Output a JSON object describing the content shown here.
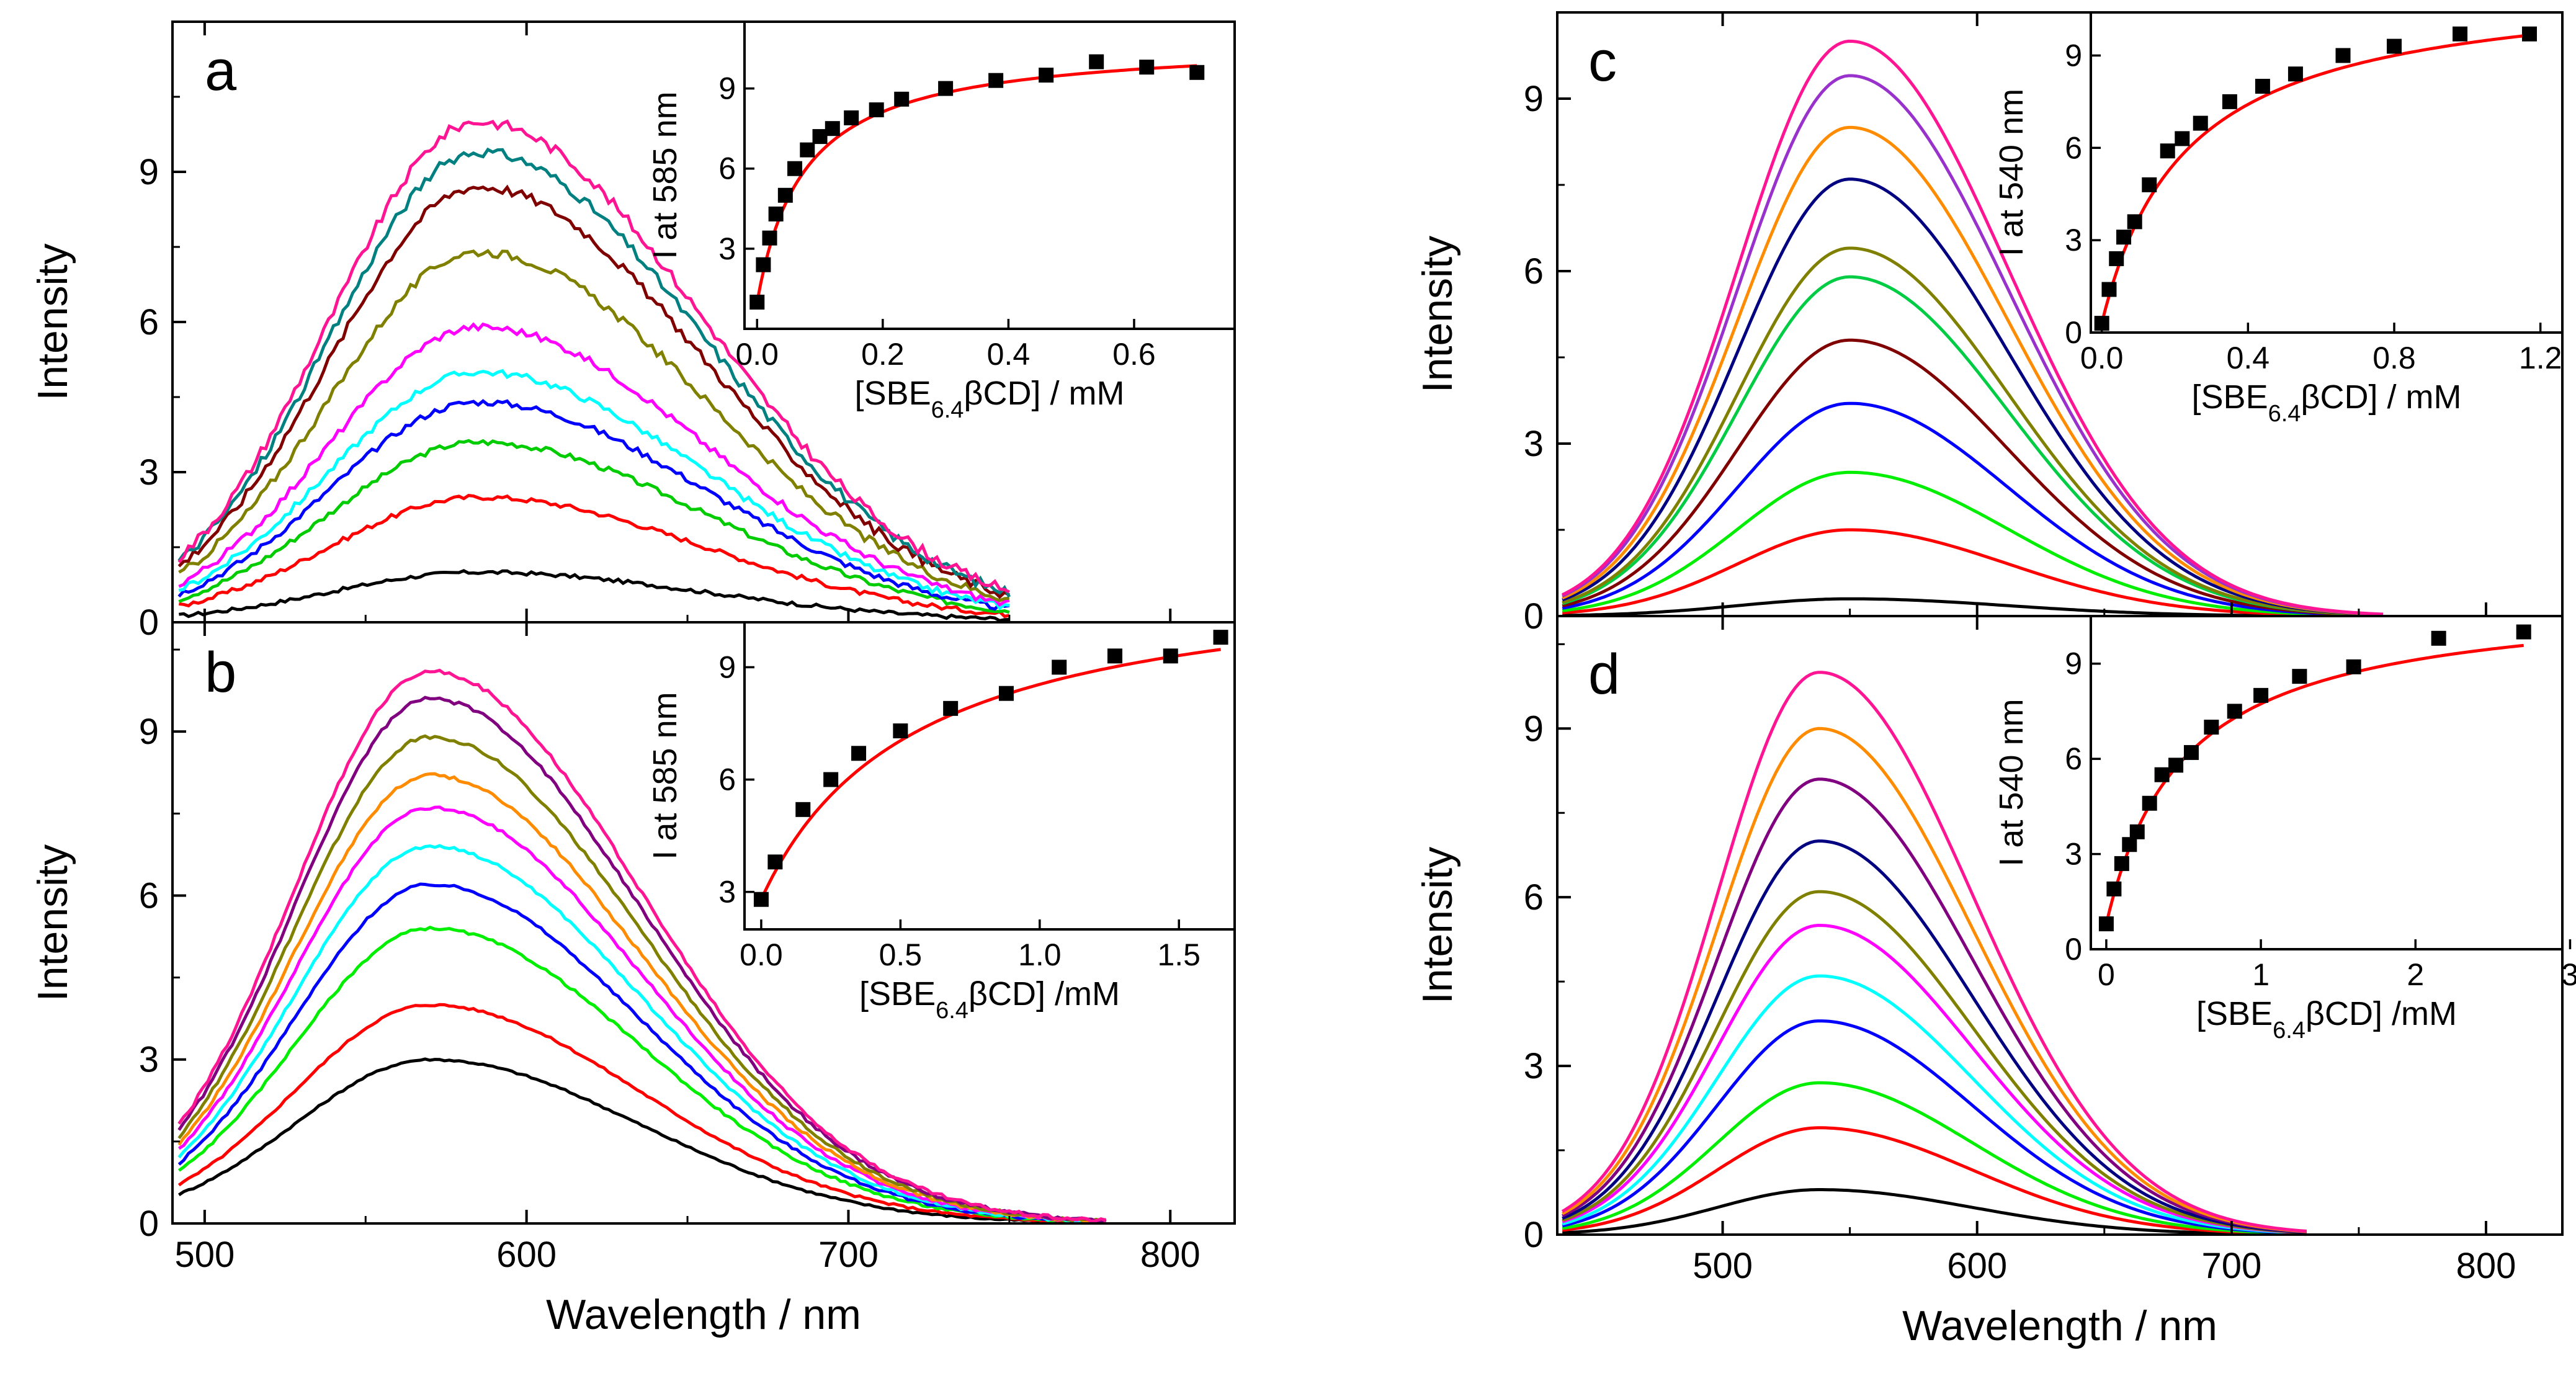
{
  "chart_data": [
    {
      "panel": "a",
      "type": "line",
      "label": "a",
      "xlabel": "",
      "ylabel": "Intensity",
      "xlim": [
        490,
        820
      ],
      "ylim": [
        0,
        12
      ],
      "xticks": [
        500,
        600,
        700,
        800
      ],
      "yticks": [
        0,
        3,
        6,
        9
      ],
      "show_x_tick_labels": false,
      "x_end": 750,
      "peak_x": 585,
      "width_left": 46,
      "width_right": 70,
      "noise": 0.15,
      "series": [
        {
          "color": "#000000",
          "peak": 1.0
        },
        {
          "color": "#ff0000",
          "peak": 2.5
        },
        {
          "color": "#00cc00",
          "peak": 3.6
        },
        {
          "color": "#0000ff",
          "peak": 4.4
        },
        {
          "color": "#00ffff",
          "peak": 5.0
        },
        {
          "color": "#ff00ff",
          "peak": 5.9
        },
        {
          "color": "#808000",
          "peak": 7.4
        },
        {
          "color": "#800000",
          "peak": 8.7
        },
        {
          "color": "#008080",
          "peak": 9.4
        },
        {
          "color": "#ff1493",
          "peak": 10.0
        }
      ],
      "inset": {
        "type": "scatter",
        "xlabel_main": "[SBE",
        "xlabel_sub": "6.4",
        "xlabel_rest": "βCD] / mM",
        "ylabel": "I at 585 nm",
        "xlim": [
          -0.02,
          0.76
        ],
        "ylim": [
          0,
          11.5
        ],
        "xticks": [
          0.0,
          0.2,
          0.4,
          0.6
        ],
        "yticks": [
          3,
          6,
          9
        ],
        "xtick_labels": [
          "0.0",
          "0.2",
          "0.4",
          "0.6"
        ],
        "x": [
          0.0,
          0.01,
          0.02,
          0.03,
          0.045,
          0.06,
          0.08,
          0.1,
          0.12,
          0.15,
          0.19,
          0.23,
          0.3,
          0.38,
          0.46,
          0.54,
          0.62,
          0.7
        ],
        "y": [
          1.0,
          2.4,
          3.4,
          4.3,
          5.0,
          6.0,
          6.7,
          7.2,
          7.5,
          7.9,
          8.2,
          8.6,
          9.0,
          9.3,
          9.5,
          10.0,
          9.8,
          9.6
        ],
        "fit_line_color": "#ff0000",
        "fit": {
          "y0": 1.0,
          "amp": 9.8,
          "k": 0.075
        }
      }
    },
    {
      "panel": "b",
      "type": "line",
      "label": "b",
      "xlabel": "Wavelength / nm",
      "ylabel": "Intensity",
      "xlim": [
        490,
        820
      ],
      "ylim": [
        0,
        11
      ],
      "xticks": [
        500,
        600,
        700,
        800
      ],
      "yticks": [
        0,
        3,
        6,
        9
      ],
      "show_x_tick_labels": true,
      "x_end": 780,
      "peak_x": 570,
      "width_left": 42,
      "width_right": 65,
      "noise": 0.05,
      "series": [
        {
          "color": "#000000",
          "peak": 3.0
        },
        {
          "color": "#ff0000",
          "peak": 4.0
        },
        {
          "color": "#00ee00",
          "peak": 5.4
        },
        {
          "color": "#0000ff",
          "peak": 6.2
        },
        {
          "color": "#00ffff",
          "peak": 6.9
        },
        {
          "color": "#ff00ff",
          "peak": 7.6
        },
        {
          "color": "#ff8c00",
          "peak": 8.2
        },
        {
          "color": "#808000",
          "peak": 8.9
        },
        {
          "color": "#800080",
          "peak": 9.6
        },
        {
          "color": "#ff1493",
          "peak": 10.1
        }
      ],
      "inset": {
        "type": "scatter",
        "xlabel_main": "[SBE",
        "xlabel_sub": "6.4",
        "xlabel_rest": "βCD] /mM",
        "ylabel": "I at 585 nm",
        "xlim": [
          -0.06,
          1.7
        ],
        "ylim": [
          2,
          10.2
        ],
        "xticks": [
          0.0,
          0.5,
          1.0,
          1.5
        ],
        "yticks": [
          3,
          6,
          9
        ],
        "xtick_labels": [
          "0.0",
          "0.5",
          "1.0",
          "1.5"
        ],
        "x": [
          0.0,
          0.05,
          0.15,
          0.25,
          0.35,
          0.5,
          0.68,
          0.88,
          1.07,
          1.27,
          1.47,
          1.65
        ],
        "y": [
          2.8,
          3.8,
          5.2,
          6.0,
          6.7,
          7.3,
          7.9,
          8.3,
          9.0,
          9.3,
          9.3,
          9.8
        ],
        "fit_line_color": "#ff0000",
        "fit": {
          "y0": 2.8,
          "amp": 8.9,
          "k": 0.55
        }
      }
    },
    {
      "panel": "c",
      "type": "line",
      "label": "c",
      "xlabel": "",
      "ylabel": "Intensity",
      "xlim": [
        435,
        830
      ],
      "ylim": [
        0,
        10.5
      ],
      "xticks": [
        500,
        600,
        700,
        800
      ],
      "yticks": [
        0,
        3,
        6,
        9
      ],
      "show_x_tick_labels": false,
      "x_end": 760,
      "peak_x": 550,
      "width_left": 44,
      "width_right": 62,
      "noise": 0.0,
      "series": [
        {
          "color": "#000000",
          "peak": 0.3
        },
        {
          "color": "#ff0000",
          "peak": 1.5
        },
        {
          "color": "#00ee00",
          "peak": 2.5
        },
        {
          "color": "#0000ff",
          "peak": 3.7
        },
        {
          "color": "#800000",
          "peak": 4.8
        },
        {
          "color": "#00cc44",
          "peak": 5.9
        },
        {
          "color": "#808000",
          "peak": 6.4
        },
        {
          "color": "#000080",
          "peak": 7.6
        },
        {
          "color": "#ff8c00",
          "peak": 8.5
        },
        {
          "color": "#9932cc",
          "peak": 9.4
        },
        {
          "color": "#ff1493",
          "peak": 10.0
        }
      ],
      "inset": {
        "type": "scatter",
        "xlabel_main": "[SBE",
        "xlabel_sub": "6.4",
        "xlabel_rest": "βCD] / mM",
        "ylabel": "I at 540 nm",
        "xlim": [
          -0.03,
          1.26
        ],
        "ylim": [
          0,
          10.4
        ],
        "xticks": [
          0.0,
          0.4,
          0.8,
          1.2
        ],
        "yticks": [
          0,
          3,
          6,
          9
        ],
        "xtick_labels": [
          "0.0",
          "0.4",
          "0.8",
          "1.2"
        ],
        "x": [
          0.0,
          0.02,
          0.04,
          0.06,
          0.09,
          0.13,
          0.18,
          0.22,
          0.27,
          0.35,
          0.44,
          0.53,
          0.66,
          0.8,
          0.98,
          1.17
        ],
        "y": [
          0.3,
          1.4,
          2.4,
          3.1,
          3.6,
          4.8,
          5.9,
          6.3,
          6.8,
          7.5,
          8.0,
          8.4,
          9.0,
          9.3,
          9.7,
          9.7
        ],
        "fit_line_color": "#ff0000",
        "fit": {
          "y0": 0.3,
          "amp": 11.2,
          "k": 0.23
        }
      }
    },
    {
      "panel": "d",
      "type": "line",
      "label": "d",
      "xlabel": "Wavelength / nm",
      "ylabel": "Intensity",
      "xlim": [
        435,
        830
      ],
      "ylim": [
        0,
        11
      ],
      "xticks": [
        500,
        600,
        700,
        800
      ],
      "yticks": [
        0,
        3,
        6,
        9
      ],
      "show_x_tick_labels": true,
      "x_end": 730,
      "peak_x": 538,
      "width_left": 40,
      "width_right": 60,
      "noise": 0.0,
      "series": [
        {
          "color": "#000000",
          "peak": 0.8
        },
        {
          "color": "#ff0000",
          "peak": 1.9
        },
        {
          "color": "#00ee00",
          "peak": 2.7
        },
        {
          "color": "#0000ff",
          "peak": 3.8
        },
        {
          "color": "#00ffff",
          "peak": 4.6
        },
        {
          "color": "#ff00ff",
          "peak": 5.5
        },
        {
          "color": "#808000",
          "peak": 6.1
        },
        {
          "color": "#000080",
          "peak": 7.0
        },
        {
          "color": "#800080",
          "peak": 8.1
        },
        {
          "color": "#ff8c00",
          "peak": 9.0
        },
        {
          "color": "#ff1493",
          "peak": 10.0
        }
      ],
      "inset": {
        "type": "scatter",
        "xlabel_main": "[SBE",
        "xlabel_sub": "6.4",
        "xlabel_rest": "βCD] /mM",
        "ylabel": "I at 540 nm",
        "xlim": [
          -0.1,
          2.95
        ],
        "ylim": [
          0,
          10.5
        ],
        "xticks": [
          0,
          1,
          2,
          3
        ],
        "yticks": [
          0,
          3,
          6,
          9
        ],
        "xtick_labels": [
          "0",
          "1",
          "2",
          "3"
        ],
        "x": [
          0.0,
          0.05,
          0.1,
          0.15,
          0.2,
          0.28,
          0.36,
          0.45,
          0.55,
          0.68,
          0.83,
          1.0,
          1.25,
          1.6,
          2.15,
          2.7
        ],
        "y": [
          0.8,
          1.9,
          2.7,
          3.3,
          3.7,
          4.6,
          5.5,
          5.8,
          6.2,
          7.0,
          7.5,
          8.0,
          8.6,
          8.9,
          9.8,
          10.0
        ],
        "fit_line_color": "#ff0000",
        "fit": {
          "y0": 0.8,
          "amp": 10.4,
          "k": 0.5
        }
      }
    }
  ]
}
